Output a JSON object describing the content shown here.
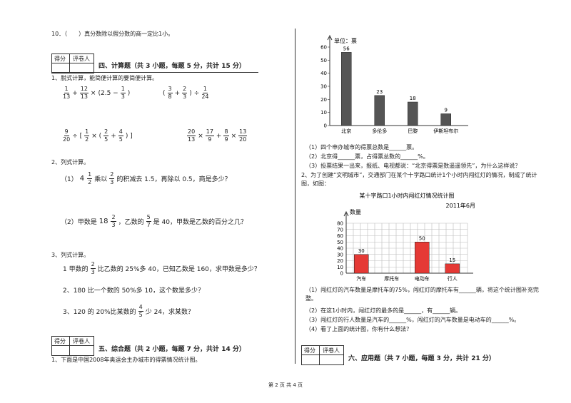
{
  "q10": "10．（　　）真分数除以假分数的商一定比1小。",
  "score_box": {
    "score": "得分",
    "grader": "评卷人"
  },
  "section4": {
    "heading": "四、计算题（共 3 小题，每题 5 分，共计 15 分）",
    "q1": {
      "prompt": "1、脱式计算，能简便计算的要简便计算。",
      "exprs": [
        [
          {
            "n": "1",
            "d": "13"
          },
          "+",
          {
            "n": "12",
            "d": "13"
          },
          "×",
          "(2.5 −",
          {
            "n": "1",
            "d": "3"
          },
          ")"
        ],
        [
          "(",
          {
            "n": "3",
            "d": "8"
          },
          "+",
          {
            "n": "2",
            "d": "3"
          },
          ")",
          "÷",
          {
            "n": "1",
            "d": "24"
          }
        ],
        [
          {
            "n": "9",
            "d": "20"
          },
          "÷ [",
          {
            "n": "1",
            "d": "2"
          },
          "× (",
          {
            "n": "2",
            "d": "5"
          },
          "+",
          {
            "n": "4",
            "d": "5"
          },
          ") ]"
        ],
        [
          {
            "n": "20",
            "d": "13"
          },
          "×",
          {
            "n": "17",
            "d": "9"
          },
          "+",
          {
            "n": "8",
            "d": "9"
          },
          "×",
          {
            "n": "13",
            "d": "20"
          }
        ]
      ]
    },
    "q2": {
      "prompt": "2、列式计算。",
      "items": [
        [
          "（1）",
          {
            "w": "4",
            "n": "1",
            "d": "2"
          },
          "乘以",
          {
            "n": "2",
            "d": "3"
          },
          "的积减去 1.5，再除以 0.5，商是多少？"
        ],
        [
          "（2）甲数是 ",
          {
            "w": "18",
            "n": "2",
            "d": "3"
          },
          "，乙数的",
          {
            "n": "5",
            "d": "7"
          },
          "是 40，甲数是乙数的百分之几？"
        ]
      ]
    },
    "q3": {
      "prompt": "3、列式计算。",
      "items": [
        [
          "1 甲数的",
          {
            "n": "2",
            "d": "3"
          },
          "比乙数的 25%多 40，已知乙数是 160，求甲数是多少？"
        ],
        [
          "2、180 比一个数的 50%多 10，这个数是多少？"
        ],
        [
          "3、120 的 20%比某数的",
          {
            "n": "4",
            "d": "5"
          },
          "少 24，求某数？"
        ]
      ]
    }
  },
  "section5": {
    "heading": "五、综合题（共 2 小题，每题 7 分，共计 14 分）",
    "q1": "1、下面是中国2008年奥运会主办城市的得票情况统计图。",
    "vote_chart": {
      "type": "bar",
      "unit_label": "单位：票",
      "categories": [
        "北京",
        "多伦多",
        "巴黎",
        "伊斯坦布尔"
      ],
      "values": [
        56,
        23,
        18,
        9
      ],
      "color": "#555555",
      "ylim": [
        0,
        60
      ],
      "yticks": [
        0,
        10,
        20,
        30,
        40,
        50,
        60
      ]
    },
    "q1_questions": [
      "（1）四个申办城市的得票总数是______票。",
      "（2）北京得______票，占得票总数的______%。",
      "（3）投票结果一出来，报纸、电视都说：“北京得票是数遥遥领先”，为什么这样说？"
    ],
    "q2": "2、为了创建“文明城市”，交通部门在某个十字路口统计1个小时内闯红灯的情况，制成了统计图，如图：",
    "redlight_chart": {
      "type": "bar",
      "title": "某十字路口1小时内闯红灯情况统计图",
      "date": "2011年6月",
      "y_label": "数量",
      "categories": [
        "汽车",
        "摩托车",
        "电动车",
        "行人"
      ],
      "values": [
        30,
        null,
        50,
        15
      ],
      "color": "#e53935",
      "ylim": [
        0,
        80
      ],
      "yticks": [
        0,
        10,
        20,
        30,
        40,
        50,
        60,
        70,
        80
      ],
      "grid": true
    },
    "q2_questions": [
      "（1）闯红灯的汽车数量是摩托车的75%，闯红灯的摩托车有______辆，将这个统计图补充完整。",
      "（2）在这1小时内，闯红灯的最多的是______，有______辆。",
      "（3）闯红灯的行人数量是汽车的______%，闯红灯的汽车数量是电动车的______%。",
      "（4）看了上面的统计图，你有什么想法？"
    ]
  },
  "section6": {
    "heading": "六、应用题（共 7 小题，每题 3 分，共计 21 分）"
  },
  "footer": "第 2 页 共 4 页"
}
